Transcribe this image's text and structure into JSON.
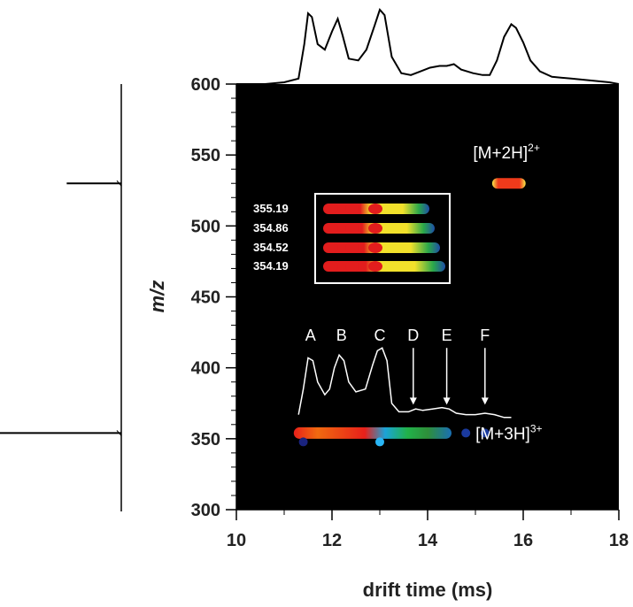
{
  "chart_data": {
    "type": "heatmap",
    "xlabel": "drift time (ms)",
    "ylabel": "m/z",
    "xlim": [
      10,
      18
    ],
    "ylim": [
      300,
      600
    ],
    "x_ticks": [
      10,
      12,
      14,
      16,
      18
    ],
    "y_ticks": [
      300,
      350,
      400,
      450,
      500,
      550,
      600
    ],
    "ions": [
      {
        "label": "[M+2H]",
        "charge": "2+",
        "mz": 530,
        "drift_start": 15.35,
        "drift_end": 16.05,
        "drift_label": 15.65,
        "mz_label": 552
      },
      {
        "label": "[M+3H]",
        "charge": "3+",
        "mz": 354,
        "drift_start": 11.2,
        "drift_end": 14.5,
        "drift_label": 15.7,
        "mz_label": 354
      }
    ],
    "peaks": [
      {
        "label": "A",
        "drift": 11.55
      },
      {
        "label": "B",
        "drift": 12.2
      },
      {
        "label": "C",
        "drift": 13.0
      },
      {
        "label": "D",
        "drift": 13.7
      },
      {
        "label": "E",
        "drift": 14.4
      },
      {
        "label": "F",
        "drift": 15.2
      }
    ],
    "inset": {
      "mz_labels": [
        "355.19",
        "354.86",
        "354.52",
        "354.19"
      ]
    },
    "drift_profile_3plus": [
      [
        11.3,
        367
      ],
      [
        11.4,
        385
      ],
      [
        11.5,
        407
      ],
      [
        11.6,
        405
      ],
      [
        11.7,
        390
      ],
      [
        11.85,
        381
      ],
      [
        11.95,
        385
      ],
      [
        12.05,
        400
      ],
      [
        12.15,
        409
      ],
      [
        12.25,
        405
      ],
      [
        12.35,
        390
      ],
      [
        12.5,
        383
      ],
      [
        12.7,
        385
      ],
      [
        12.85,
        402
      ],
      [
        12.95,
        412
      ],
      [
        13.05,
        414
      ],
      [
        13.15,
        405
      ],
      [
        13.25,
        375
      ],
      [
        13.4,
        369
      ],
      [
        13.6,
        369
      ],
      [
        13.75,
        371
      ],
      [
        13.9,
        370
      ],
      [
        14.1,
        371
      ],
      [
        14.3,
        372
      ],
      [
        14.45,
        371
      ],
      [
        14.6,
        368
      ],
      [
        14.8,
        367
      ],
      [
        15.0,
        367
      ],
      [
        15.2,
        368
      ],
      [
        15.4,
        367
      ],
      [
        15.6,
        365
      ],
      [
        15.75,
        365
      ]
    ],
    "top_profile": [
      [
        10.0,
        603
      ],
      [
        10.6,
        603
      ],
      [
        11.0,
        604
      ],
      [
        11.3,
        606
      ],
      [
        11.42,
        625
      ],
      [
        11.5,
        642
      ],
      [
        11.58,
        640
      ],
      [
        11.7,
        625
      ],
      [
        11.85,
        622
      ],
      [
        12.0,
        632
      ],
      [
        12.12,
        639
      ],
      [
        12.22,
        630
      ],
      [
        12.35,
        617
      ],
      [
        12.55,
        616
      ],
      [
        12.72,
        622
      ],
      [
        12.9,
        636
      ],
      [
        13.0,
        644
      ],
      [
        13.1,
        641
      ],
      [
        13.25,
        618
      ],
      [
        13.45,
        609
      ],
      [
        13.65,
        608
      ],
      [
        13.85,
        610
      ],
      [
        14.05,
        612
      ],
      [
        14.25,
        613
      ],
      [
        14.4,
        613
      ],
      [
        14.55,
        614
      ],
      [
        14.7,
        611
      ],
      [
        14.95,
        609
      ],
      [
        15.15,
        608
      ],
      [
        15.3,
        608
      ],
      [
        15.45,
        616
      ],
      [
        15.6,
        629
      ],
      [
        15.75,
        636
      ],
      [
        15.85,
        634
      ],
      [
        16.0,
        626
      ],
      [
        16.15,
        616
      ],
      [
        16.35,
        610
      ],
      [
        16.6,
        607
      ],
      [
        17.0,
        606
      ],
      [
        17.4,
        605
      ],
      [
        17.8,
        604
      ],
      [
        18.0,
        603
      ]
    ],
    "left_spectrum_peaks": [
      {
        "mz": 530,
        "intensity": 0.45
      },
      {
        "mz": 354,
        "intensity": 1.0
      }
    ]
  }
}
